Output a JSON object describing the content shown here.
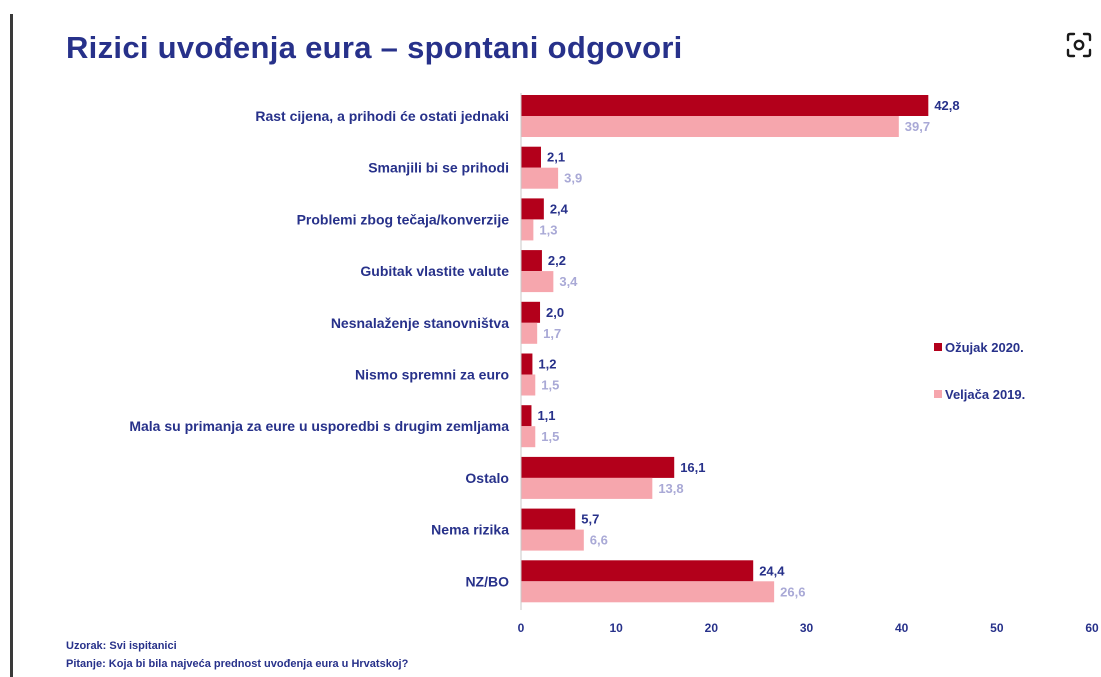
{
  "title": "Rizici uvođenja eura – spontani odgovori",
  "footer": {
    "sample": "Uzorak: Svi ispitanici",
    "question": "Pitanje: Koja bi bila najveća prednost uvođenja eura u Hrvatskoj?"
  },
  "icons": {
    "lens": "lens-scan-icon"
  },
  "chart_data": {
    "type": "bar",
    "orientation": "horizontal",
    "categories": [
      "Rast cijena, a prihodi će ostati jednaki",
      "Smanjili bi se prihodi",
      "Problemi zbog tečaja/konverzije",
      "Gubitak vlastite valute",
      "Nesnalaženje stanovništva",
      "Nismo spremni za euro",
      "Mala su primanja za eure u usporedbi s drugim zemljama",
      "Ostalo",
      "Nema rizika",
      "NZ/BO"
    ],
    "series": [
      {
        "name": "Ožujak 2020.",
        "color": "#b3001b",
        "values": [
          42.8,
          2.1,
          2.4,
          2.2,
          2.0,
          1.2,
          1.1,
          16.1,
          5.7,
          24.4
        ],
        "labels": [
          "42,8",
          "2,1",
          "2,4",
          "2,2",
          "2,0",
          "1,2",
          "1,1",
          "16,1",
          "5,7",
          "24,4"
        ]
      },
      {
        "name": "Veljača 2019.",
        "color": "#f6a6ad",
        "values": [
          39.7,
          3.9,
          1.3,
          3.4,
          1.7,
          1.5,
          1.5,
          13.8,
          6.6,
          26.6
        ],
        "labels": [
          "39,7",
          "3,9",
          "1,3",
          "3,4",
          "1,7",
          "1,5",
          "1,5",
          "13,8",
          "6,6",
          "26,6"
        ]
      }
    ],
    "xlim": [
      0,
      60
    ],
    "xticks": [
      0,
      10,
      20,
      30,
      40,
      50,
      60
    ],
    "xlabel": "",
    "ylabel": "",
    "grid": false,
    "legend_position": "right"
  }
}
